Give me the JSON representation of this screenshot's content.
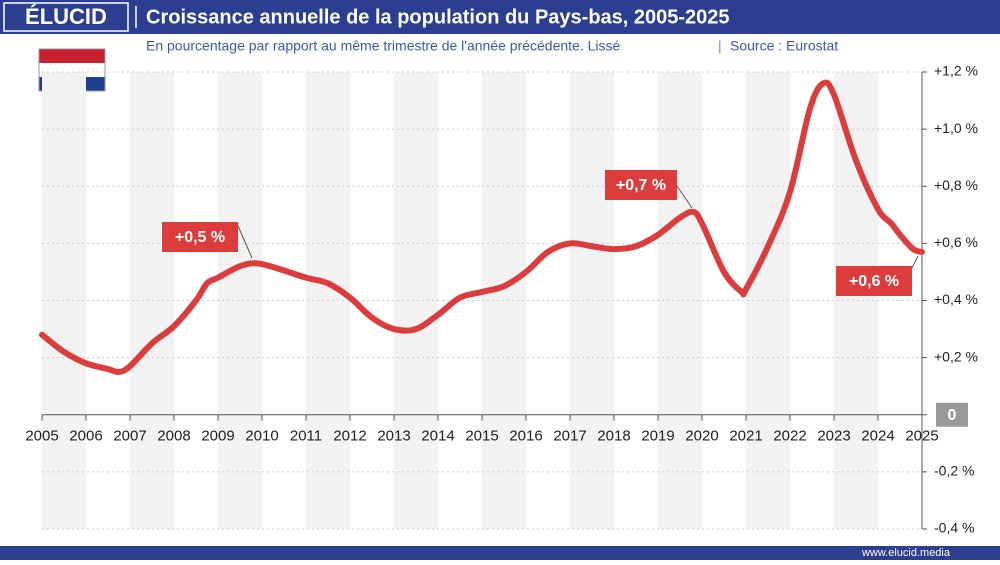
{
  "chart_data": {
    "type": "line",
    "brand": "ÉLUCID",
    "title": "Croissance annuelle de la population du Pays-bas, 2005-2025",
    "subtitle": "En pourcentage par rapport au même trimestre de l'année précédente. Lissé",
    "source": "Source : Eurostat",
    "footer": "www.elucid.media",
    "color": "#dc3c3c",
    "x": [
      2005.0,
      2005.5,
      2006.0,
      2006.5,
      2006.75,
      2007.0,
      2007.5,
      2008.0,
      2008.5,
      2008.75,
      2009.0,
      2009.5,
      2009.9,
      2010.4,
      2011.0,
      2011.5,
      2012.0,
      2012.5,
      2013.0,
      2013.5,
      2014.0,
      2014.5,
      2015.0,
      2015.5,
      2016.0,
      2016.5,
      2017.0,
      2017.5,
      2018.0,
      2018.5,
      2019.0,
      2019.5,
      2019.8,
      2020.0,
      2020.5,
      2020.9,
      2021.0,
      2021.5,
      2022.0,
      2022.45,
      2022.75,
      2023.0,
      2023.5,
      2024.0,
      2024.3,
      2024.5,
      2024.8,
      2025.0
    ],
    "values": [
      0.28,
      0.22,
      0.18,
      0.16,
      0.15,
      0.17,
      0.25,
      0.31,
      0.4,
      0.46,
      0.48,
      0.52,
      0.53,
      0.51,
      0.48,
      0.46,
      0.41,
      0.34,
      0.3,
      0.3,
      0.35,
      0.41,
      0.43,
      0.45,
      0.5,
      0.57,
      0.6,
      0.59,
      0.58,
      0.59,
      0.63,
      0.69,
      0.71,
      0.67,
      0.5,
      0.43,
      0.44,
      0.59,
      0.78,
      1.07,
      1.16,
      1.12,
      0.89,
      0.72,
      0.67,
      0.63,
      0.58,
      0.57
    ],
    "annotations": [
      "+0,5 %",
      "+0,7 %",
      "+0,6 %"
    ],
    "xlim": [
      2005,
      2025
    ],
    "xticks": [
      2005,
      2006,
      2007,
      2008,
      2009,
      2010,
      2011,
      2012,
      2013,
      2014,
      2015,
      2016,
      2017,
      2018,
      2019,
      2020,
      2021,
      2022,
      2023,
      2024,
      2025
    ],
    "ylim": [
      -0.4,
      1.2
    ],
    "yticks": [
      {
        "value": -0.4,
        "label": "-0,4 %"
      },
      {
        "value": -0.2,
        "label": "-0,2 %"
      },
      0,
      {
        "value": 0.2,
        "label": "+0,2 %"
      },
      {
        "value": 0.4,
        "label": "+0,4 %"
      },
      {
        "value": 0.6,
        "label": "+0,6 %"
      },
      {
        "value": 0.8,
        "label": "+0,8 %"
      },
      {
        "value": 1.0,
        "label": "+1,0 %"
      },
      {
        "value": 1.2,
        "label": "+1,2 %"
      }
    ],
    "grid": true
  }
}
